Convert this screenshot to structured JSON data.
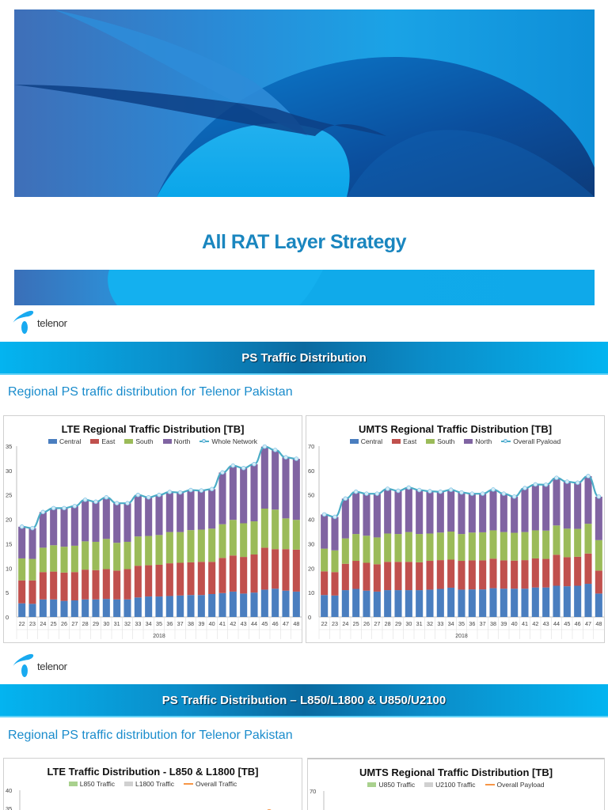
{
  "cover": {
    "title": "All RAT Layer Strategy"
  },
  "logo": {
    "wordmark": "telenor",
    "icon": "telenor-logo-icon"
  },
  "slide1": {
    "header": "PS Traffic Distribution",
    "subtitle": "Regional PS traffic distribution for Telenor Pakistan"
  },
  "slide2": {
    "header": "PS Traffic Distribution – L850/L1800 & U850/U2100",
    "subtitle": "Regional PS traffic distribution for Telenor Pakistan"
  },
  "colors": {
    "central": "#4a7ebf",
    "east": "#c0504d",
    "south": "#9bbb59",
    "north": "#8064a2",
    "line": "#4bacc6",
    "orange": "#f79646",
    "l850": "#a9d18e",
    "l1800": "#d0d0d0",
    "accent": "#1a86bf"
  },
  "chart_data": [
    {
      "type": "bar",
      "stacked": true,
      "title": "LTE Regional Traffic Distribution [TB]",
      "xlabel": "2018",
      "ylabel": "",
      "ylim": [
        0,
        35
      ],
      "yticks": [
        0,
        5,
        10,
        15,
        20,
        25,
        30,
        35
      ],
      "categories": [
        "22",
        "23",
        "24",
        "25",
        "26",
        "27",
        "28",
        "29",
        "30",
        "31",
        "32",
        "33",
        "34",
        "35",
        "36",
        "37",
        "38",
        "39",
        "40",
        "41",
        "42",
        "43",
        "44",
        "45",
        "46",
        "47",
        "48"
      ],
      "legend": [
        "Central",
        "East",
        "South",
        "North",
        "Whole Network"
      ],
      "series": [
        {
          "name": "Central",
          "values": [
            2.8,
            2.7,
            3.6,
            3.6,
            3.3,
            3.4,
            3.6,
            3.6,
            3.7,
            3.6,
            3.6,
            4.0,
            4.2,
            4.2,
            4.3,
            4.4,
            4.5,
            4.5,
            4.7,
            4.9,
            5.2,
            4.8,
            5.0,
            5.6,
            5.8,
            5.4,
            5.2
          ]
        },
        {
          "name": "East",
          "values": [
            4.7,
            4.8,
            5.6,
            5.7,
            5.8,
            5.8,
            6.1,
            6.0,
            6.1,
            5.9,
            6.2,
            6.5,
            6.4,
            6.5,
            6.7,
            6.7,
            6.7,
            6.8,
            6.6,
            7.2,
            7.4,
            7.5,
            7.8,
            8.6,
            8.1,
            8.5,
            8.6
          ]
        },
        {
          "name": "South",
          "values": [
            4.5,
            4.4,
            5.0,
            5.4,
            5.3,
            5.4,
            5.8,
            5.8,
            6.2,
            5.7,
            5.6,
            6.0,
            6.0,
            6.1,
            6.4,
            6.3,
            6.6,
            6.6,
            6.8,
            6.9,
            7.3,
            6.9,
            6.8,
            8.0,
            8.1,
            6.3,
            6.1
          ]
        },
        {
          "name": "North",
          "values": [
            6.5,
            6.3,
            7.3,
            7.6,
            7.9,
            8.1,
            8.5,
            8.2,
            8.5,
            8.1,
            7.9,
            8.5,
            7.9,
            8.2,
            8.2,
            8.1,
            8.2,
            8.0,
            8.1,
            10.6,
            11.1,
            11.3,
            11.7,
            12.7,
            12.2,
            12.5,
            12.5
          ]
        },
        {
          "name": "Whole Network",
          "type": "line",
          "values": [
            18.5,
            18.2,
            21.5,
            22.3,
            22.3,
            22.7,
            24.0,
            23.6,
            24.5,
            23.3,
            23.3,
            25.0,
            24.5,
            25.0,
            25.6,
            25.5,
            26.0,
            25.9,
            26.2,
            29.6,
            31.0,
            30.5,
            31.3,
            34.9,
            34.2,
            32.7,
            32.4
          ]
        }
      ],
      "legend_position": "top",
      "grid": false
    },
    {
      "type": "bar",
      "stacked": true,
      "title": "UMTS Regional Traffic Distribution [TB]",
      "xlabel": "2018",
      "ylabel": "",
      "ylim": [
        0,
        70
      ],
      "yticks": [
        0,
        10,
        20,
        30,
        40,
        50,
        60,
        70
      ],
      "categories": [
        "22",
        "23",
        "24",
        "25",
        "26",
        "27",
        "28",
        "29",
        "30",
        "31",
        "32",
        "33",
        "34",
        "35",
        "36",
        "37",
        "38",
        "39",
        "40",
        "41",
        "42",
        "43",
        "44",
        "45",
        "46",
        "47",
        "48"
      ],
      "legend": [
        "Central",
        "East",
        "South",
        "North",
        "Overall Pyaload"
      ],
      "series": [
        {
          "name": "Central",
          "values": [
            9.0,
            8.8,
            11.0,
            11.5,
            10.8,
            10.4,
            11.0,
            11.0,
            11.0,
            11.0,
            11.2,
            11.5,
            12.0,
            11.2,
            11.3,
            11.3,
            11.8,
            11.6,
            11.6,
            11.6,
            12.1,
            12.1,
            12.8,
            12.6,
            12.8,
            13.6,
            9.6
          ]
        },
        {
          "name": "East",
          "values": [
            9.7,
            9.6,
            10.8,
            11.5,
            11.4,
            11.2,
            11.6,
            11.6,
            11.6,
            11.4,
            11.8,
            11.8,
            11.5,
            11.8,
            11.9,
            11.9,
            12.1,
            11.6,
            11.5,
            11.7,
            11.9,
            11.7,
            12.7,
            11.9,
            11.9,
            12.4,
            9.4
          ]
        },
        {
          "name": "South",
          "values": [
            9.3,
            8.9,
            10.4,
            11.0,
            11.1,
            11.0,
            11.6,
            11.4,
            12.2,
            11.6,
            11.2,
            11.3,
            11.5,
            11.0,
            11.4,
            11.5,
            11.6,
            11.6,
            11.4,
            11.5,
            11.5,
            11.6,
            12.0,
            11.7,
            11.4,
            12.2,
            12.5
          ]
        },
        {
          "name": "North",
          "values": [
            14.0,
            13.7,
            16.3,
            17.3,
            17.2,
            17.9,
            18.3,
            17.7,
            18.2,
            18.0,
            17.3,
            16.7,
            17.1,
            17.0,
            15.9,
            15.8,
            16.7,
            15.7,
            14.8,
            18.0,
            18.8,
            18.8,
            19.5,
            19.2,
            18.9,
            19.5,
            17.8
          ]
        },
        {
          "name": "Overall Pyaload",
          "type": "line",
          "values": [
            42.0,
            41.0,
            48.5,
            51.3,
            50.5,
            50.5,
            52.5,
            51.7,
            53.0,
            52.0,
            51.5,
            51.3,
            52.1,
            51.0,
            50.5,
            50.5,
            52.2,
            50.5,
            49.3,
            52.8,
            54.3,
            54.2,
            57.0,
            55.4,
            55.0,
            57.7,
            49.3
          ]
        }
      ],
      "legend_position": "top",
      "grid": false
    },
    {
      "type": "bar",
      "stacked": true,
      "title": "LTE Traffic Distribution - L850 & L1800 [TB]",
      "legend": [
        "L850 Traffic",
        "L1800 Traffic",
        "Overall Traffic"
      ],
      "ylim": [
        0,
        40
      ],
      "yticks_visible": [
        40,
        35
      ],
      "partial": true
    },
    {
      "type": "bar",
      "stacked": true,
      "title": "UMTS Regional Traffic Distribution [TB]",
      "legend": [
        "U850 Traffic",
        "U2100 Traffic",
        "Overall Payload"
      ],
      "ylim": [
        0,
        70
      ],
      "yticks_visible": [
        70
      ],
      "partial": true
    }
  ]
}
